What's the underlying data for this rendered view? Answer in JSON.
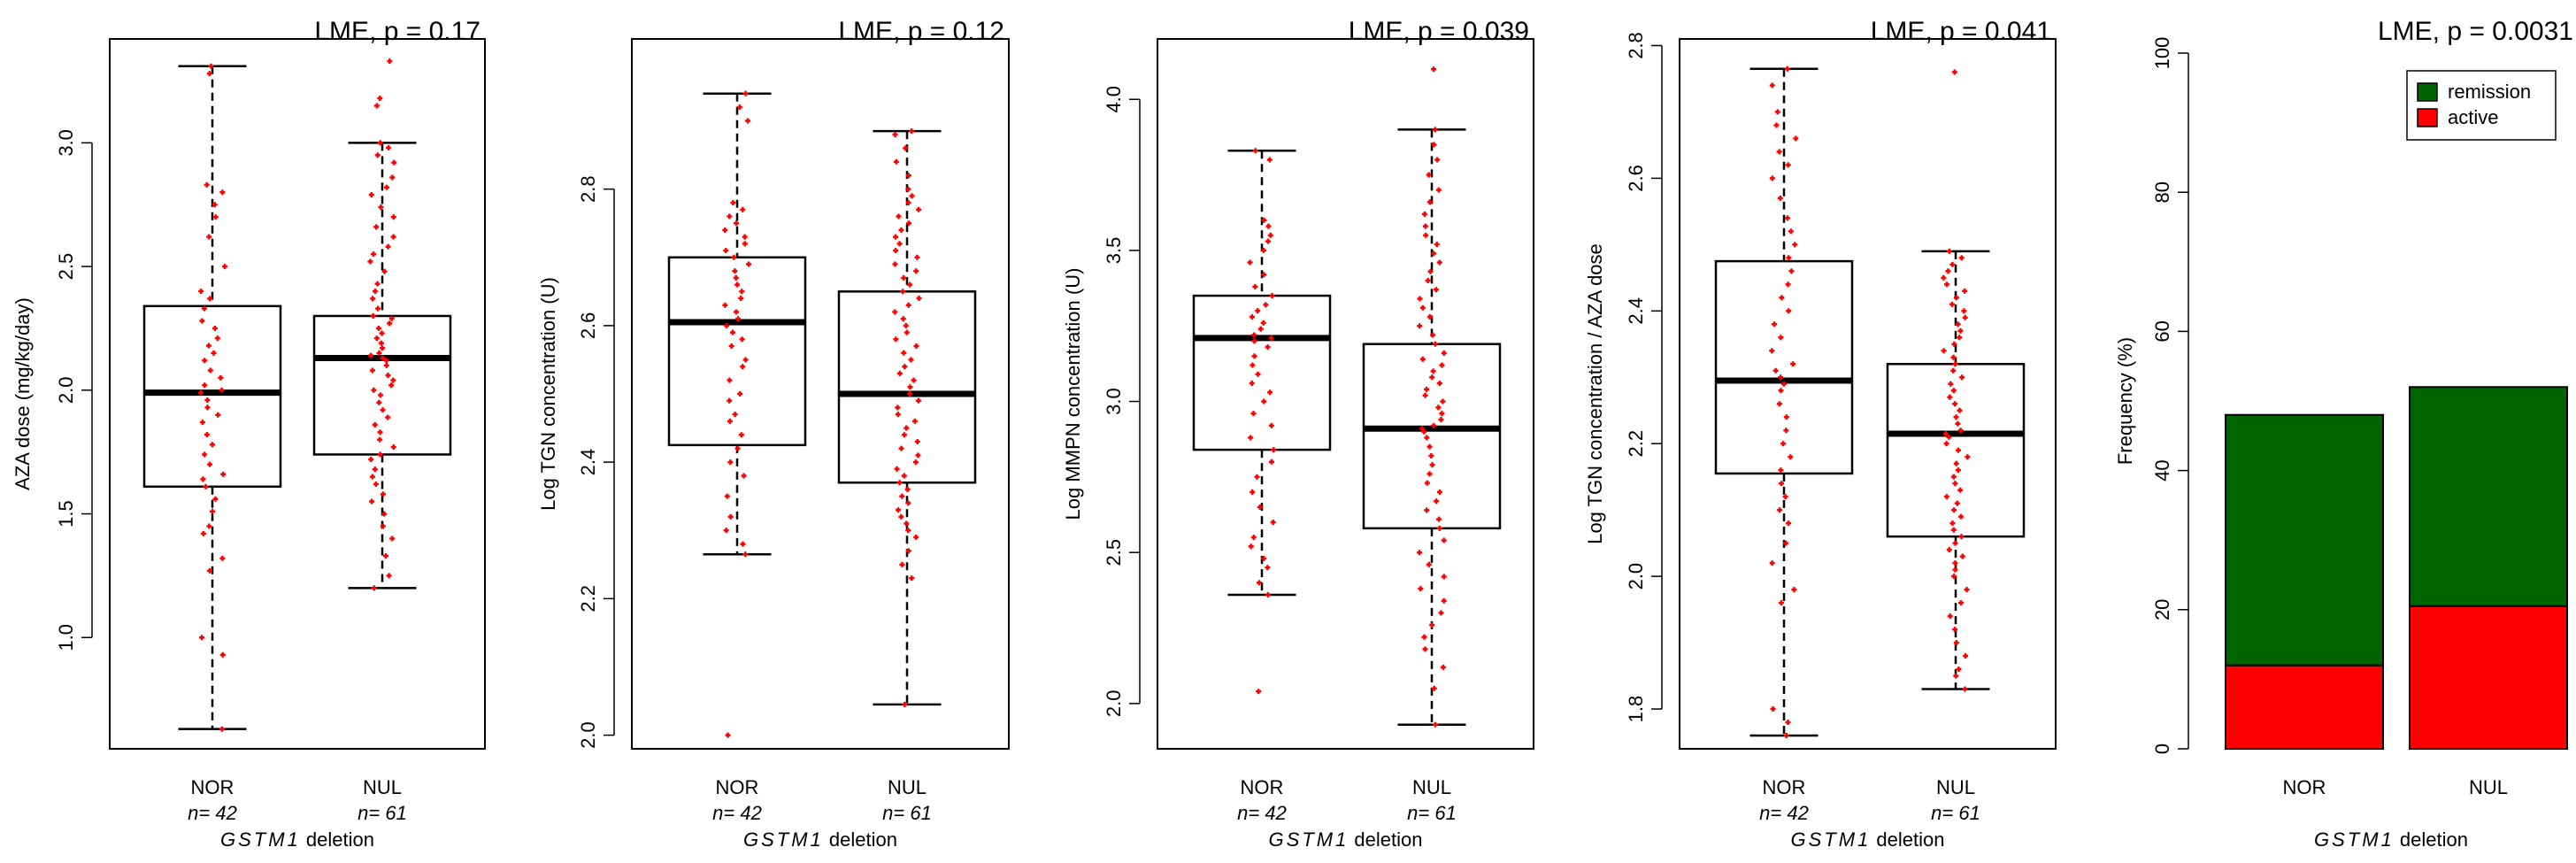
{
  "chart_data": [
    {
      "type": "box",
      "title": "LME, p = 0.17",
      "ylabel": "AZA dose (mg/kg/day)",
      "xlabel_italic": "GSTM1",
      "xlabel_rest": "deletion",
      "ylim": [
        0.55,
        3.42
      ],
      "yticks": [
        "1.0",
        "1.5",
        "2.0",
        "2.5",
        "3.0"
      ],
      "groups": [
        {
          "name": "NOR",
          "n_label": "n= 42",
          "stats": {
            "min": 0.63,
            "q1": 1.61,
            "median": 1.99,
            "q3": 2.34,
            "max": 3.31
          },
          "points": [
            0.63,
            0.93,
            1.0,
            1.27,
            1.32,
            1.42,
            1.45,
            1.51,
            1.56,
            1.61,
            1.64,
            1.66,
            1.7,
            1.74,
            1.78,
            1.82,
            1.87,
            1.9,
            1.93,
            1.96,
            1.99,
            2.0,
            2.02,
            2.05,
            2.08,
            2.12,
            2.15,
            2.18,
            2.21,
            2.25,
            2.28,
            2.33,
            2.37,
            2.4,
            2.5,
            2.62,
            2.7,
            2.75,
            2.8,
            2.83,
            3.28,
            3.31
          ]
        },
        {
          "name": "NUL",
          "n_label": "n= 61",
          "stats": {
            "min": 1.2,
            "q1": 1.74,
            "median": 2.13,
            "q3": 2.3,
            "max": 3.0
          },
          "points": [
            1.2,
            1.25,
            1.33,
            1.4,
            1.45,
            1.5,
            1.55,
            1.58,
            1.62,
            1.65,
            1.68,
            1.72,
            1.74,
            1.77,
            1.8,
            1.83,
            1.86,
            1.89,
            1.92,
            1.95,
            1.98,
            2.0,
            2.02,
            2.04,
            2.06,
            2.08,
            2.1,
            2.12,
            2.13,
            2.14,
            2.15,
            2.17,
            2.19,
            2.21,
            2.23,
            2.25,
            2.27,
            2.29,
            2.3,
            2.33,
            2.37,
            2.4,
            2.43,
            2.48,
            2.52,
            2.55,
            2.58,
            2.62,
            2.66,
            2.7,
            2.74,
            2.79,
            2.82,
            2.86,
            2.92,
            2.95,
            2.98,
            3.0,
            3.15,
            3.18,
            3.33
          ]
        }
      ]
    },
    {
      "type": "box",
      "title": "LME, p = 0.12",
      "ylabel": "Log TGN concentration (U)",
      "xlabel_italic": "GSTM1",
      "xlabel_rest": "deletion",
      "ylim": [
        1.98,
        3.02
      ],
      "yticks": [
        "2.0",
        "2.2",
        "2.4",
        "2.6",
        "2.8"
      ],
      "groups": [
        {
          "name": "NOR",
          "n_label": "n= 42",
          "stats": {
            "min": 2.265,
            "q1": 2.425,
            "median": 2.605,
            "q3": 2.7,
            "max": 2.94
          },
          "points": [
            2.0,
            2.265,
            2.28,
            2.3,
            2.32,
            2.35,
            2.38,
            2.4,
            2.42,
            2.44,
            2.46,
            2.47,
            2.49,
            2.5,
            2.52,
            2.54,
            2.55,
            2.57,
            2.58,
            2.59,
            2.6,
            2.61,
            2.62,
            2.63,
            2.64,
            2.65,
            2.66,
            2.67,
            2.68,
            2.69,
            2.7,
            2.71,
            2.72,
            2.73,
            2.74,
            2.75,
            2.76,
            2.77,
            2.78,
            2.9,
            2.92,
            2.94
          ]
        },
        {
          "name": "NUL",
          "n_label": "n= 61",
          "stats": {
            "min": 2.045,
            "q1": 2.37,
            "median": 2.5,
            "q3": 2.65,
            "max": 2.885
          },
          "points": [
            2.045,
            2.23,
            2.25,
            2.27,
            2.29,
            2.3,
            2.31,
            2.32,
            2.33,
            2.34,
            2.35,
            2.36,
            2.37,
            2.38,
            2.39,
            2.4,
            2.41,
            2.42,
            2.43,
            2.44,
            2.45,
            2.46,
            2.47,
            2.48,
            2.49,
            2.5,
            2.51,
            2.52,
            2.53,
            2.54,
            2.55,
            2.56,
            2.57,
            2.58,
            2.59,
            2.6,
            2.61,
            2.62,
            2.63,
            2.64,
            2.65,
            2.66,
            2.67,
            2.68,
            2.69,
            2.7,
            2.71,
            2.72,
            2.73,
            2.74,
            2.75,
            2.76,
            2.77,
            2.78,
            2.79,
            2.8,
            2.82,
            2.84,
            2.86,
            2.88,
            2.885
          ]
        }
      ]
    },
    {
      "type": "box",
      "title": "LME, p = 0.039",
      "ylabel": "Log MMPN concentration (U)",
      "xlabel_italic": "GSTM1",
      "xlabel_rest": "deletion",
      "ylim": [
        1.85,
        4.2
      ],
      "yticks": [
        "2.0",
        "2.5",
        "3.0",
        "3.5",
        "4.0"
      ],
      "groups": [
        {
          "name": "NOR",
          "n_label": "n= 42",
          "stats": {
            "min": 2.36,
            "q1": 2.84,
            "median": 3.21,
            "q3": 3.35,
            "max": 3.83
          },
          "points": [
            2.04,
            2.36,
            2.4,
            2.45,
            2.48,
            2.52,
            2.55,
            2.6,
            2.65,
            2.7,
            2.75,
            2.8,
            2.84,
            2.88,
            2.92,
            2.96,
            3.0,
            3.03,
            3.06,
            3.09,
            3.12,
            3.15,
            3.18,
            3.2,
            3.21,
            3.22,
            3.24,
            3.26,
            3.28,
            3.3,
            3.32,
            3.35,
            3.38,
            3.42,
            3.46,
            3.5,
            3.53,
            3.55,
            3.58,
            3.6,
            3.8,
            3.83
          ]
        },
        {
          "name": "NUL",
          "n_label": "n= 61",
          "stats": {
            "min": 1.93,
            "q1": 2.58,
            "median": 2.91,
            "q3": 3.19,
            "max": 3.9
          },
          "points": [
            1.93,
            2.05,
            2.12,
            2.18,
            2.22,
            2.26,
            2.3,
            2.34,
            2.38,
            2.42,
            2.46,
            2.5,
            2.54,
            2.58,
            2.61,
            2.64,
            2.67,
            2.7,
            2.73,
            2.76,
            2.79,
            2.82,
            2.85,
            2.88,
            2.9,
            2.91,
            2.92,
            2.94,
            2.96,
            2.98,
            3.0,
            3.02,
            3.04,
            3.06,
            3.08,
            3.1,
            3.12,
            3.14,
            3.16,
            3.19,
            3.22,
            3.25,
            3.28,
            3.31,
            3.34,
            3.37,
            3.4,
            3.43,
            3.46,
            3.49,
            3.52,
            3.55,
            3.58,
            3.62,
            3.66,
            3.7,
            3.75,
            3.8,
            3.85,
            3.9,
            4.1
          ]
        }
      ]
    },
    {
      "type": "box",
      "title": "LME, p = 0.041",
      "ylabel": "Log TGN concentration / AZA dose",
      "xlabel_italic": "GSTM1",
      "xlabel_rest": "deletion",
      "ylim": [
        1.74,
        2.81
      ],
      "yticks": [
        "1.8",
        "2.0",
        "2.2",
        "2.4",
        "2.6",
        "2.8"
      ],
      "groups": [
        {
          "name": "NOR",
          "n_label": "n= 42",
          "stats": {
            "min": 1.76,
            "q1": 2.155,
            "median": 2.295,
            "q3": 2.475,
            "max": 2.765
          },
          "points": [
            1.76,
            1.78,
            1.8,
            1.96,
            1.98,
            2.02,
            2.05,
            2.08,
            2.1,
            2.12,
            2.14,
            2.16,
            2.18,
            2.2,
            2.22,
            2.24,
            2.26,
            2.28,
            2.29,
            2.3,
            2.31,
            2.32,
            2.34,
            2.36,
            2.38,
            2.4,
            2.42,
            2.44,
            2.46,
            2.48,
            2.5,
            2.52,
            2.54,
            2.57,
            2.6,
            2.62,
            2.64,
            2.66,
            2.68,
            2.7,
            2.74,
            2.765
          ]
        },
        {
          "name": "NUL",
          "n_label": "n= 61",
          "stats": {
            "min": 1.83,
            "q1": 2.06,
            "median": 2.215,
            "q3": 2.32,
            "max": 2.49
          },
          "points": [
            1.83,
            1.85,
            1.86,
            1.88,
            1.9,
            1.92,
            1.94,
            1.96,
            1.98,
            2.0,
            2.01,
            2.02,
            2.03,
            2.04,
            2.05,
            2.06,
            2.07,
            2.08,
            2.09,
            2.1,
            2.11,
            2.12,
            2.13,
            2.14,
            2.15,
            2.16,
            2.17,
            2.18,
            2.19,
            2.2,
            2.21,
            2.215,
            2.22,
            2.23,
            2.24,
            2.25,
            2.26,
            2.27,
            2.28,
            2.29,
            2.3,
            2.31,
            2.32,
            2.33,
            2.34,
            2.35,
            2.36,
            2.37,
            2.38,
            2.39,
            2.4,
            2.41,
            2.42,
            2.43,
            2.44,
            2.45,
            2.46,
            2.47,
            2.48,
            2.49,
            2.76
          ]
        }
      ]
    },
    {
      "type": "stacked_bar",
      "title": "LME, p = 0.0031",
      "ylabel": "Frequency (%)",
      "xlabel_italic": "GSTM1",
      "xlabel_rest": "deletion",
      "ylim": [
        0,
        100
      ],
      "yticks": [
        "0",
        "20",
        "40",
        "60",
        "80",
        "100"
      ],
      "categories": [
        "NOR",
        "NUL"
      ],
      "series": [
        {
          "name": "active",
          "color": "#ff0000",
          "values": [
            12,
            20.5
          ]
        },
        {
          "name": "remission",
          "color": "#006400",
          "values": [
            36,
            31.5
          ]
        }
      ],
      "legend": [
        {
          "label": "remission",
          "color": "#006400"
        },
        {
          "label": "active",
          "color": "#ff0000"
        }
      ],
      "legend_position": "top-right"
    }
  ]
}
